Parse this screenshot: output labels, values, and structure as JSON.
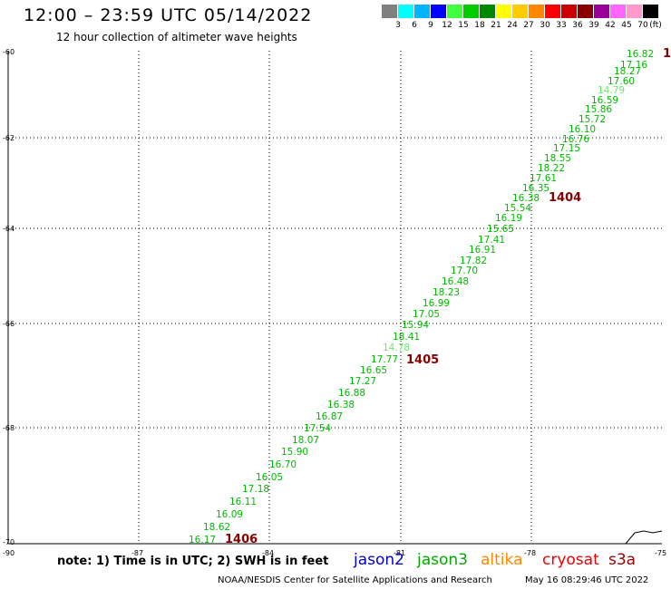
{
  "title": "12:00 – 23:59 UTC 05/14/2022",
  "subtitle": "12 hour collection of altimeter wave heights",
  "color_scale": {
    "colors": [
      "#808080",
      "#00ffff",
      "#00b4ff",
      "#0000ff",
      "#40ff40",
      "#00cc00",
      "#008800",
      "#ffff00",
      "#ffcc00",
      "#ff8800",
      "#ff0000",
      "#cc0000",
      "#880000",
      "#990099",
      "#ff66ff",
      "#ff99cc",
      "#000000"
    ],
    "labels": [
      "3",
      "6",
      "9",
      "12",
      "15",
      "18",
      "21",
      "24",
      "27",
      "30",
      "33",
      "36",
      "39",
      "42",
      "45",
      "70"
    ],
    "unit": "(ft)"
  },
  "axes": {
    "lon_ticks": [
      "-90",
      "-87",
      "-84",
      "-81",
      "-78",
      "-75"
    ],
    "lat_ticks": [
      "-60",
      "-62",
      "-64",
      "-66",
      "-68",
      "-70"
    ]
  },
  "wave_heights": [
    {
      "value": "16.82",
      "color": "#00bb00"
    },
    {
      "value": "17.16",
      "color": "#00bb00"
    },
    {
      "value": "18.27",
      "color": "#00bb00"
    },
    {
      "value": "17.60",
      "color": "#00bb00"
    },
    {
      "value": "14.79",
      "color": "#66ee66"
    },
    {
      "value": "16.59",
      "color": "#00bb00"
    },
    {
      "value": "15.86",
      "color": "#00bb00"
    },
    {
      "value": "15.72",
      "color": "#00bb00"
    },
    {
      "value": "16.10",
      "color": "#00bb00"
    },
    {
      "value": "16.76",
      "color": "#00bb00"
    },
    {
      "value": "17.15",
      "color": "#00bb00"
    },
    {
      "value": "18.55",
      "color": "#00bb00"
    },
    {
      "value": "18.22",
      "color": "#00bb00"
    },
    {
      "value": "17.61",
      "color": "#00bb00"
    },
    {
      "value": "16.35",
      "color": "#00bb00"
    },
    {
      "value": "16.38",
      "color": "#00bb00"
    },
    {
      "value": "15.54",
      "color": "#00bb00"
    },
    {
      "value": "16.19",
      "color": "#00bb00"
    },
    {
      "value": "15.65",
      "color": "#00bb00"
    },
    {
      "value": "17.41",
      "color": "#00bb00"
    },
    {
      "value": "16.91",
      "color": "#00bb00"
    },
    {
      "value": "17.82",
      "color": "#00bb00"
    },
    {
      "value": "17.70",
      "color": "#00bb00"
    },
    {
      "value": "16.48",
      "color": "#00bb00"
    },
    {
      "value": "18.23",
      "color": "#00bb00"
    },
    {
      "value": "16.99",
      "color": "#00bb00"
    },
    {
      "value": "17.05",
      "color": "#00bb00"
    },
    {
      "value": "15.94",
      "color": "#00bb00"
    },
    {
      "value": "18.41",
      "color": "#00bb00"
    },
    {
      "value": "14.78",
      "color": "#66ee66"
    },
    {
      "value": "17.77",
      "color": "#00bb00"
    },
    {
      "value": "16.65",
      "color": "#00bb00"
    },
    {
      "value": "17.27",
      "color": "#00bb00"
    },
    {
      "value": "16.88",
      "color": "#00bb00"
    },
    {
      "value": "16.38",
      "color": "#00bb00"
    },
    {
      "value": "16.87",
      "color": "#00bb00"
    },
    {
      "value": "17.54",
      "color": "#00bb00"
    },
    {
      "value": "18.07",
      "color": "#00bb00"
    },
    {
      "value": "15.90",
      "color": "#00bb00"
    },
    {
      "value": "16.70",
      "color": "#00bb00"
    },
    {
      "value": "16.05",
      "color": "#00bb00"
    },
    {
      "value": "17.18",
      "color": "#00bb00"
    },
    {
      "value": "16.11",
      "color": "#00bb00"
    },
    {
      "value": "16.09",
      "color": "#00bb00"
    },
    {
      "value": "18.62",
      "color": "#00bb00"
    },
    {
      "value": "16.17",
      "color": "#00bb00"
    }
  ],
  "pass_labels": [
    "1",
    "1404",
    "1405",
    "1406"
  ],
  "pass_label_color": "#880000",
  "note": "note: 1) Time is in UTC; 2) SWH is in feet",
  "legend": [
    {
      "label": "jason2",
      "color": "#0000dd"
    },
    {
      "label": "jason3",
      "color": "#00aa00"
    },
    {
      "label": "altika",
      "color": "#ff8800"
    },
    {
      "label": "cryosat",
      "color": "#ee0000"
    },
    {
      "label": "s3a",
      "color": "#990000"
    }
  ],
  "footer": {
    "credit": "NOAA/NESDIS Center for Satellite Applications and Research",
    "timestamp": "May 16 08:29:46 UTC 2022"
  }
}
